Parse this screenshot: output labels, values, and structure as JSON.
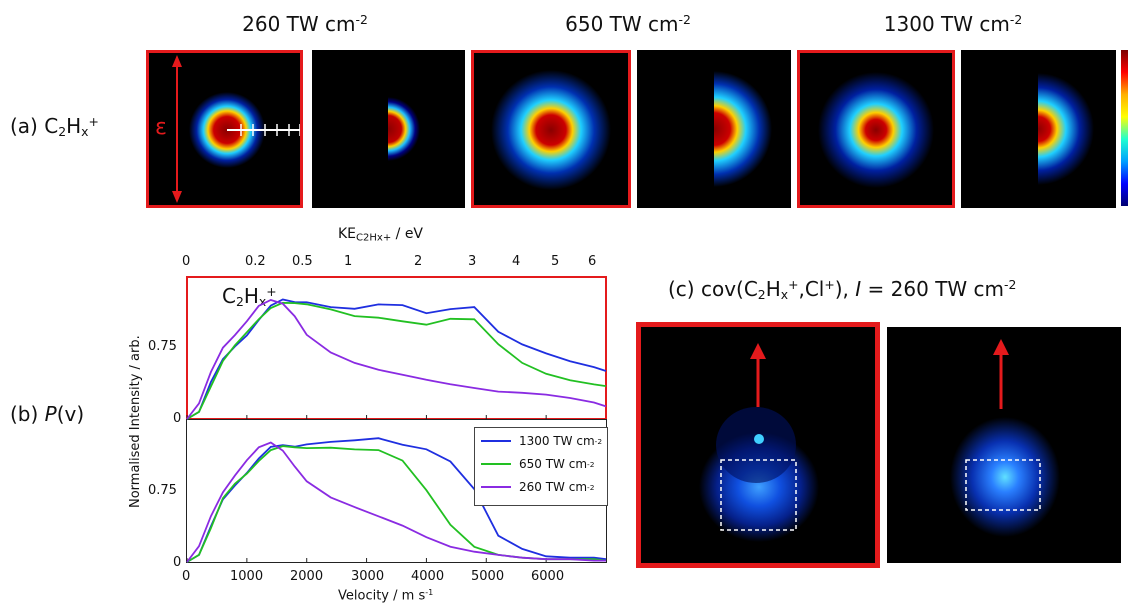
{
  "panel_a": {
    "label_prefix": "(a) C",
    "label_sub": "2",
    "label_mid": "H",
    "label_sub2": "x",
    "label_sup": "+",
    "epsilon": "ε",
    "headers": [
      {
        "value": "260 TW cm",
        "sup": "-2"
      },
      {
        "value": "650 TW cm",
        "sup": "-2"
      },
      {
        "value": "1300 TW cm",
        "sup": "-2"
      }
    ]
  },
  "panel_b": {
    "label_prefix": "(b) ",
    "label_italic": "P",
    "label_suffix": "(v)",
    "species_prefix": "C",
    "species_sub": "2",
    "species_mid": "H",
    "species_sub2": "x",
    "species_sup": "+",
    "top_axis_label": "KE",
    "top_axis_sub": "C2Hx+",
    "top_axis_unit": " / eV",
    "top_ticks": [
      "0",
      "0.2",
      "0.5",
      "1",
      "2",
      "3",
      "4",
      "5",
      "6"
    ],
    "ylabel": "Normalised Intensity / arb.",
    "xlabel_prefix": "Velocity / m s",
    "xlabel_sup": "-1",
    "yticks": [
      "0",
      "0.75"
    ],
    "xticks": [
      "0",
      "1000",
      "2000",
      "3000",
      "4000",
      "5000",
      "6000"
    ],
    "legend": [
      {
        "prefix": "1300 TW cm",
        "sup": "-2",
        "color": "#1f2fe0"
      },
      {
        "prefix": "650 TW cm",
        "sup": "-2",
        "color": "#22c022"
      },
      {
        "prefix": "260 TW cm",
        "sup": "-2",
        "color": "#8a2be2"
      }
    ]
  },
  "panel_c": {
    "label_a": "(c) cov(C",
    "label_sub": "2",
    "label_b": "H",
    "label_sub2": "x",
    "label_sup": "+",
    "label_c": ",Cl",
    "label_sup2": "+",
    "label_d": "), ",
    "label_italic": "I",
    "label_e": " = 260 TW cm",
    "label_sup3": "-2"
  },
  "colors": {
    "frame_red": "#e41a1c",
    "blue": "#1f2fe0",
    "green": "#22c022",
    "purple": "#8a2be2"
  },
  "chart_data": {
    "type": "line",
    "xlabel": "Velocity / m s-1",
    "ylabel": "Normalised Intensity / arb.",
    "xlim": [
      0,
      7000
    ],
    "panels": [
      {
        "name": "top",
        "x": [
          0,
          200,
          400,
          600,
          800,
          1000,
          1200,
          1400,
          1600,
          1800,
          2000,
          2400,
          2800,
          3200,
          3600,
          4000,
          4400,
          4800,
          5200,
          5600,
          6000,
          6400,
          6800,
          7000
        ],
        "series": [
          {
            "name": "1300 TW cm-2",
            "values": [
              0,
              0.05,
              0.25,
              0.42,
              0.52,
              0.6,
              0.7,
              0.79,
              0.83,
              0.82,
              0.83,
              0.8,
              0.78,
              0.8,
              0.79,
              0.74,
              0.78,
              0.8,
              0.62,
              0.52,
              0.45,
              0.4,
              0.37,
              0.35
            ]
          },
          {
            "name": "650 TW cm-2",
            "values": [
              0,
              0.05,
              0.24,
              0.41,
              0.51,
              0.6,
              0.7,
              0.79,
              0.83,
              0.82,
              0.8,
              0.76,
              0.72,
              0.72,
              0.7,
              0.67,
              0.7,
              0.69,
              0.52,
              0.4,
              0.33,
              0.28,
              0.24,
              0.22
            ]
          },
          {
            "name": "260 TW cm-2",
            "values": [
              0,
              0.1,
              0.32,
              0.5,
              0.6,
              0.7,
              0.8,
              0.83,
              0.8,
              0.72,
              0.6,
              0.48,
              0.4,
              0.34,
              0.3,
              0.27,
              0.25,
              0.23,
              0.2,
              0.18,
              0.16,
              0.14,
              0.12,
              0.1
            ]
          }
        ]
      },
      {
        "name": "bottom",
        "x": [
          0,
          200,
          400,
          600,
          800,
          1000,
          1200,
          1400,
          1600,
          1800,
          2000,
          2400,
          2800,
          3200,
          3600,
          4000,
          4400,
          4800,
          5200,
          5600,
          6000,
          6400,
          6800,
          7000
        ],
        "series": [
          {
            "name": "1300 TW cm-2",
            "values": [
              0,
              0.05,
              0.25,
              0.45,
              0.55,
              0.63,
              0.72,
              0.8,
              0.82,
              0.82,
              0.84,
              0.85,
              0.85,
              0.86,
              0.82,
              0.8,
              0.72,
              0.52,
              0.18,
              0.08,
              0.04,
              0.03,
              0.03,
              0.02
            ]
          },
          {
            "name": "650 TW cm-2",
            "values": [
              0,
              0.05,
              0.24,
              0.44,
              0.54,
              0.62,
              0.72,
              0.8,
              0.82,
              0.8,
              0.79,
              0.8,
              0.8,
              0.8,
              0.72,
              0.5,
              0.25,
              0.1,
              0.05,
              0.03,
              0.02,
              0.02,
              0.02,
              0.01
            ]
          },
          {
            "name": "260 TW cm-2",
            "values": [
              0,
              0.1,
              0.32,
              0.5,
              0.62,
              0.72,
              0.8,
              0.83,
              0.78,
              0.68,
              0.58,
              0.46,
              0.38,
              0.31,
              0.25,
              0.18,
              0.12,
              0.08,
              0.05,
              0.03,
              0.02,
              0.02,
              0.01,
              0.01
            ]
          }
        ]
      }
    ],
    "ylim": [
      0,
      1
    ]
  }
}
